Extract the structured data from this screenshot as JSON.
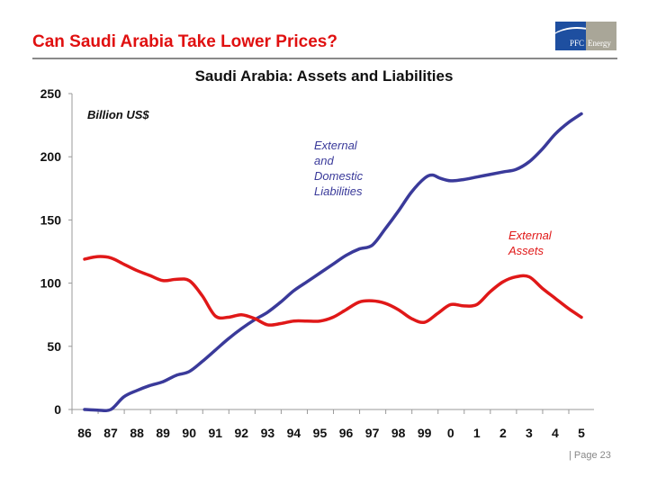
{
  "header": {
    "title": "Can Saudi Arabia Take Lower Prices?",
    "logo_text": [
      "PFC",
      "Energy"
    ]
  },
  "footer": {
    "page": "| Page 23"
  },
  "chart_data": {
    "type": "line",
    "title": "Saudi Arabia: Assets and Liabilities",
    "ylabel": "Billion US$",
    "xlabel": "",
    "ylim": [
      0,
      250
    ],
    "yticks": [
      0,
      50,
      100,
      150,
      200,
      250
    ],
    "xlim": [
      1986,
      2005
    ],
    "xtick_labels": [
      "86",
      "87",
      "88",
      "89",
      "90",
      "91",
      "92",
      "93",
      "94",
      "95",
      "96",
      "97",
      "98",
      "99",
      "0",
      "1",
      "2",
      "3",
      "4",
      "5"
    ],
    "grid": false,
    "series": [
      {
        "name": "External and Domestic Liabilities",
        "label_lines": [
          "External",
          "and",
          "Domestic",
          "Liabilities"
        ],
        "color": "#3a3a9a",
        "x": [
          1986,
          1986.5,
          1987,
          1987.5,
          1988,
          1988.5,
          1989,
          1989.5,
          1990,
          1990.5,
          1991,
          1991.5,
          1992,
          1992.5,
          1993,
          1993.5,
          1994,
          1994.5,
          1995,
          1995.5,
          1996,
          1996.5,
          1997,
          1997.5,
          1998,
          1998.5,
          1999,
          1999.3,
          1999.6,
          2000,
          2000.5,
          2001,
          2001.5,
          2002,
          2002.5,
          2003,
          2003.5,
          2004,
          2004.5,
          2005
        ],
        "y": [
          0,
          -0.5,
          0,
          10,
          15,
          19,
          22,
          27,
          30,
          38,
          47,
          56,
          64,
          71,
          77,
          85,
          94,
          101,
          108,
          115,
          122,
          127,
          130,
          143,
          157,
          172,
          183,
          185.5,
          183,
          181,
          182,
          184,
          186,
          188,
          190,
          196,
          206,
          218,
          227,
          234
        ]
      },
      {
        "name": "External Assets",
        "label_lines": [
          "External",
          "Assets"
        ],
        "color": "#e01818",
        "x": [
          1986,
          1986.5,
          1987,
          1987.5,
          1988,
          1988.5,
          1989,
          1989.5,
          1990,
          1990.5,
          1991,
          1991.5,
          1992,
          1992.5,
          1993,
          1993.5,
          1994,
          1994.5,
          1995,
          1995.5,
          1996,
          1996.5,
          1997,
          1997.5,
          1998,
          1998.5,
          1999,
          1999.5,
          2000,
          2000.5,
          2001,
          2001.5,
          2002,
          2002.5,
          2003,
          2003.5,
          2004,
          2004.5,
          2005
        ],
        "y": [
          119,
          121,
          120,
          115,
          110,
          106,
          102,
          103,
          102,
          90,
          74,
          73,
          75,
          72,
          67,
          68,
          70,
          70,
          70,
          73,
          79,
          85,
          86,
          84,
          79,
          72,
          69,
          76,
          83,
          82,
          83,
          93,
          101,
          105,
          105,
          96,
          88,
          80,
          73
        ]
      }
    ]
  }
}
